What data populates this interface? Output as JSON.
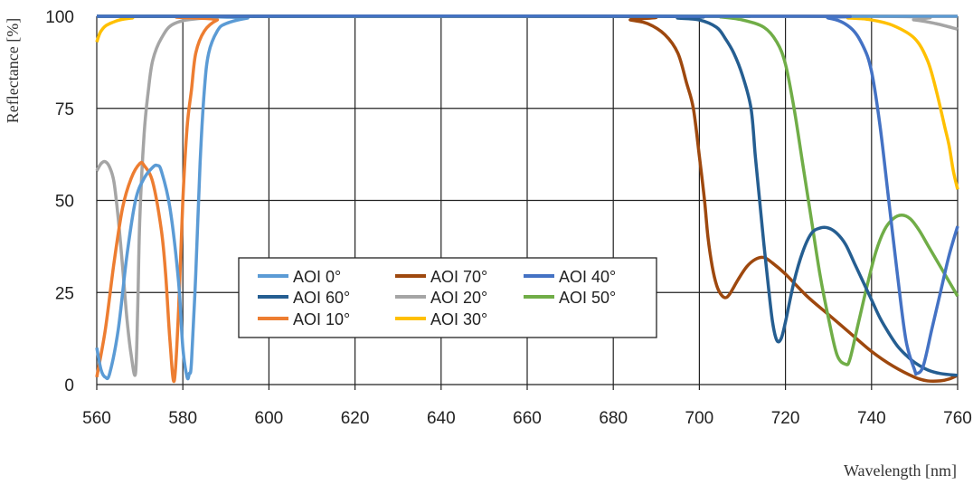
{
  "chart_data": {
    "type": "line",
    "title": "",
    "xlabel": "Wavelength [nm]",
    "ylabel": "Reflectance [%]",
    "xlim": [
      560,
      760
    ],
    "ylim": [
      0,
      100
    ],
    "xticks": [
      560,
      580,
      600,
      620,
      640,
      660,
      680,
      700,
      720,
      740,
      760
    ],
    "yticks": [
      0,
      25,
      50,
      75,
      100
    ],
    "grid": true,
    "legend_position": "center-left",
    "series": [
      {
        "name": "AOI 0°",
        "color": "#5B9BD5",
        "points": [
          [
            560,
            10
          ],
          [
            561,
            4
          ],
          [
            562,
            2
          ],
          [
            563,
            3
          ],
          [
            565,
            15
          ],
          [
            567,
            35
          ],
          [
            569,
            50
          ],
          [
            571,
            56
          ],
          [
            573,
            59
          ],
          [
            574,
            59.5
          ],
          [
            575,
            58
          ],
          [
            577,
            48
          ],
          [
            579,
            28
          ],
          [
            580,
            10
          ],
          [
            581,
            2
          ],
          [
            581.5,
            3
          ],
          [
            582,
            6
          ],
          [
            583,
            30
          ],
          [
            584,
            60
          ],
          [
            585,
            80
          ],
          [
            586,
            90
          ],
          [
            588,
            96
          ],
          [
            590,
            98
          ],
          [
            595,
            99.5
          ],
          [
            600,
            100
          ],
          [
            760,
            100
          ]
        ]
      },
      {
        "name": "AOI 60°",
        "color": "#255E91",
        "points": [
          [
            560,
            100
          ],
          [
            690,
            100
          ],
          [
            695,
            99.5
          ],
          [
            700,
            99
          ],
          [
            704,
            97
          ],
          [
            706,
            94
          ],
          [
            708,
            90
          ],
          [
            710,
            84
          ],
          [
            712,
            75
          ],
          [
            713,
            62
          ],
          [
            714,
            50
          ],
          [
            715,
            38
          ],
          [
            716,
            27
          ],
          [
            717,
            17
          ],
          [
            718,
            12
          ],
          [
            719,
            12.5
          ],
          [
            720,
            17
          ],
          [
            722,
            28
          ],
          [
            724,
            36
          ],
          [
            726,
            41
          ],
          [
            728,
            42.5
          ],
          [
            730,
            42.5
          ],
          [
            732,
            41
          ],
          [
            734,
            38
          ],
          [
            736,
            33
          ],
          [
            738,
            28
          ],
          [
            740,
            23
          ],
          [
            742,
            18
          ],
          [
            744,
            14
          ],
          [
            746,
            10.5
          ],
          [
            748,
            8
          ],
          [
            750,
            6
          ],
          [
            753,
            4
          ],
          [
            756,
            3
          ],
          [
            760,
            2.5
          ]
        ]
      },
      {
        "name": "AOI 10°",
        "color": "#ED7D31",
        "points": [
          [
            560,
            2
          ],
          [
            562,
            15
          ],
          [
            564,
            33
          ],
          [
            566,
            48
          ],
          [
            568,
            56
          ],
          [
            570,
            60
          ],
          [
            571,
            59.5
          ],
          [
            573,
            55
          ],
          [
            575,
            42
          ],
          [
            576,
            30
          ],
          [
            577,
            12
          ],
          [
            578,
            1
          ],
          [
            579,
            20
          ],
          [
            580,
            50
          ],
          [
            581,
            70
          ],
          [
            582,
            80
          ],
          [
            583,
            90
          ],
          [
            585,
            96
          ],
          [
            588,
            99
          ],
          [
            592,
            100
          ],
          [
            760,
            100
          ]
        ]
      },
      {
        "name": "AOI 70°",
        "color": "#9E480E",
        "points": [
          [
            560,
            100
          ],
          [
            680,
            100
          ],
          [
            684,
            99
          ],
          [
            688,
            98
          ],
          [
            692,
            95
          ],
          [
            695,
            90
          ],
          [
            697,
            82
          ],
          [
            698.6,
            75
          ],
          [
            700,
            62
          ],
          [
            701.2,
            50
          ],
          [
            702,
            40
          ],
          [
            703,
            32
          ],
          [
            704,
            27
          ],
          [
            705,
            24.5
          ],
          [
            706,
            23.6
          ],
          [
            707,
            24.5
          ],
          [
            709,
            28.5
          ],
          [
            711,
            32
          ],
          [
            713,
            34
          ],
          [
            715,
            34.5
          ],
          [
            717,
            33
          ],
          [
            720,
            30
          ],
          [
            725,
            24
          ],
          [
            730,
            19
          ],
          [
            735,
            14
          ],
          [
            740,
            9
          ],
          [
            745,
            5
          ],
          [
            750,
            2
          ],
          [
            753,
            1
          ],
          [
            756,
            1
          ],
          [
            758,
            1.5
          ],
          [
            760,
            2.5
          ]
        ]
      },
      {
        "name": "AOI 20°",
        "color": "#A5A5A5",
        "points": [
          [
            560,
            58
          ],
          [
            561,
            60
          ],
          [
            562,
            60.5
          ],
          [
            563,
            59
          ],
          [
            564,
            55
          ],
          [
            565,
            45
          ],
          [
            566,
            32
          ],
          [
            567,
            18
          ],
          [
            568,
            8
          ],
          [
            569,
            3
          ],
          [
            569.5,
            20
          ],
          [
            570,
            45
          ],
          [
            571,
            68
          ],
          [
            572,
            80
          ],
          [
            573,
            88
          ],
          [
            575,
            94
          ],
          [
            578,
            98
          ],
          [
            585,
            99.5
          ],
          [
            600,
            100
          ],
          [
            740,
            100
          ],
          [
            750,
            99
          ],
          [
            755,
            98
          ],
          [
            760,
            96.5
          ]
        ]
      },
      {
        "name": "AOI 30°",
        "color": "#FFC000",
        "points": [
          [
            560,
            93
          ],
          [
            561,
            96
          ],
          [
            563,
            98
          ],
          [
            568,
            99.5
          ],
          [
            580,
            100
          ],
          [
            720,
            100
          ],
          [
            735,
            99.5
          ],
          [
            740,
            99
          ],
          [
            745,
            97.5
          ],
          [
            750,
            94
          ],
          [
            753,
            88
          ],
          [
            755,
            80
          ],
          [
            757,
            70
          ],
          [
            758,
            65
          ],
          [
            759,
            58
          ],
          [
            760,
            53
          ]
        ]
      },
      {
        "name": "AOI 40°",
        "color": "#4472C4",
        "points": [
          [
            560,
            100
          ],
          [
            720,
            100
          ],
          [
            730,
            99.5
          ],
          [
            735,
            97
          ],
          [
            738,
            92
          ],
          [
            740,
            85
          ],
          [
            742,
            70
          ],
          [
            744,
            50
          ],
          [
            746,
            30
          ],
          [
            748,
            12
          ],
          [
            750,
            4
          ],
          [
            750.5,
            3
          ],
          [
            752,
            5
          ],
          [
            754,
            15
          ],
          [
            756,
            25
          ],
          [
            758,
            35
          ],
          [
            760,
            43
          ]
        ]
      },
      {
        "name": "AOI 50°",
        "color": "#70AD47",
        "points": [
          [
            560,
            100
          ],
          [
            700,
            100
          ],
          [
            705,
            99.8
          ],
          [
            710,
            99
          ],
          [
            715,
            97
          ],
          [
            718,
            93
          ],
          [
            720,
            87
          ],
          [
            722,
            75
          ],
          [
            724,
            60
          ],
          [
            726,
            45
          ],
          [
            728,
            30
          ],
          [
            730,
            18
          ],
          [
            732,
            8
          ],
          [
            734,
            5.5
          ],
          [
            735,
            7
          ],
          [
            737,
            17
          ],
          [
            739,
            27
          ],
          [
            741,
            36
          ],
          [
            743,
            42
          ],
          [
            745,
            45
          ],
          [
            747,
            46
          ],
          [
            749,
            45
          ],
          [
            751,
            42
          ],
          [
            753,
            38
          ],
          [
            755,
            34
          ],
          [
            757,
            30
          ],
          [
            760,
            24
          ]
        ]
      }
    ]
  }
}
